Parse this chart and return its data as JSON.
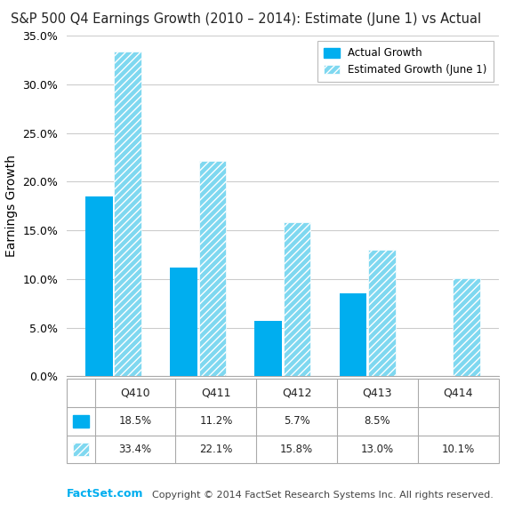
{
  "title": "S&P 500 Q4 Earnings Growth (2010 – 2014): Estimate (June 1) vs Actual",
  "categories": [
    "Q410",
    "Q411",
    "Q412",
    "Q413",
    "Q414"
  ],
  "actual_values": [
    18.5,
    11.2,
    5.7,
    8.5,
    null
  ],
  "estimated_values": [
    33.4,
    22.1,
    15.8,
    13.0,
    10.1
  ],
  "actual_color": "#00AEEF",
  "estimated_color": "#7FD8F0",
  "ylabel": "Earnings Growth",
  "ylim_max": 0.35,
  "yticks": [
    0.0,
    0.05,
    0.1,
    0.15,
    0.2,
    0.25,
    0.3,
    0.35
  ],
  "legend_actual": "Actual Growth",
  "legend_estimated": "Estimated Growth (June 1)",
  "factset_color": "#00AEEF",
  "factset_label": "FactSet.com",
  "copyright_text": "Copyright © 2014 FactSet Research Systems Inc. All rights reserved.",
  "background_color": "#ffffff",
  "grid_color": "#cccccc",
  "table_actual_row": [
    "18.5%",
    "11.2%",
    "5.7%",
    "8.5%",
    ""
  ],
  "table_estimated_row": [
    "33.4%",
    "22.1%",
    "15.8%",
    "13.0%",
    "10.1%"
  ]
}
